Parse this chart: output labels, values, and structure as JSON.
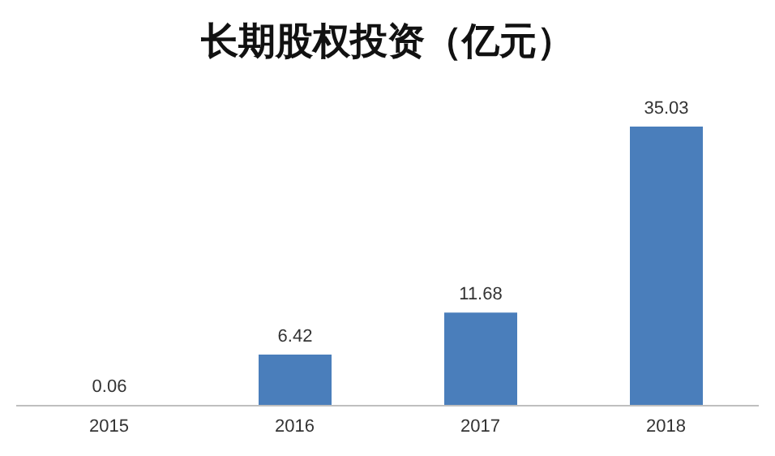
{
  "chart_data": {
    "type": "bar",
    "title": "长期股权投资（亿元）",
    "categories": [
      "2015",
      "2016",
      "2017",
      "2018"
    ],
    "values": [
      0.06,
      6.42,
      11.68,
      35.03
    ],
    "color": "#4a7ebb",
    "data_labels": true,
    "grid": false
  }
}
